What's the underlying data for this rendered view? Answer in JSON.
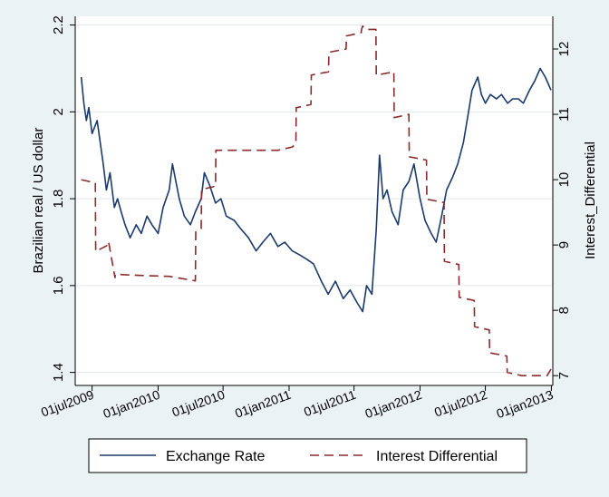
{
  "chart_data": {
    "type": "line",
    "title": "",
    "xlabel": "",
    "x_ticks": [
      "01jul2009",
      "01jan2010",
      "01jul2010",
      "01jan2011",
      "01jul2011",
      "01jan2012",
      "01jul2012",
      "01jan2013"
    ],
    "xlim": [
      "2009-05-15",
      "2013-01-05"
    ],
    "left_axis": {
      "label": "Brazilian real / US dollar",
      "ticks": [
        1.4,
        1.6,
        1.8,
        2,
        2.2
      ],
      "ylim": [
        1.37,
        2.22
      ]
    },
    "right_axis": {
      "label": "Interest_Differential",
      "ticks": [
        7,
        8,
        9,
        10,
        11,
        12
      ],
      "ylim": [
        6.85,
        12.5
      ]
    },
    "grid": "horizontal",
    "legend": {
      "position": "bottom",
      "entries": [
        "Exchange Rate",
        "Interest Differential"
      ]
    },
    "colors": {
      "exchange_rate": "#1a3a6b",
      "interest_differential": "#8b2a2a",
      "background": "#eaf2f3",
      "plot_area": "#ffffff"
    },
    "series": [
      {
        "name": "Exchange Rate",
        "axis": "left",
        "style": "solid",
        "x": [
          "2009-06-01",
          "2009-06-08",
          "2009-06-15",
          "2009-06-22",
          "2009-07-01",
          "2009-07-15",
          "2009-08-01",
          "2009-08-10",
          "2009-08-20",
          "2009-09-01",
          "2009-09-10",
          "2009-09-20",
          "2009-10-01",
          "2009-10-15",
          "2009-11-01",
          "2009-11-15",
          "2009-12-01",
          "2009-12-15",
          "2010-01-01",
          "2010-01-15",
          "2010-02-01",
          "2010-02-10",
          "2010-03-01",
          "2010-03-15",
          "2010-04-01",
          "2010-04-15",
          "2010-05-01",
          "2010-05-10",
          "2010-05-25",
          "2010-06-10",
          "2010-06-25",
          "2010-07-10",
          "2010-08-01",
          "2010-08-20",
          "2010-09-10",
          "2010-10-01",
          "2010-10-20",
          "2010-11-10",
          "2010-12-01",
          "2010-12-20",
          "2011-01-10",
          "2011-02-01",
          "2011-02-20",
          "2011-03-10",
          "2011-04-01",
          "2011-04-20",
          "2011-05-10",
          "2011-06-01",
          "2011-06-20",
          "2011-07-10",
          "2011-07-25",
          "2011-08-05",
          "2011-08-20",
          "2011-09-01",
          "2011-09-10",
          "2011-09-20",
          "2011-10-01",
          "2011-10-15",
          "2011-11-01",
          "2011-11-15",
          "2011-12-01",
          "2011-12-15",
          "2012-01-01",
          "2012-01-15",
          "2012-02-01",
          "2012-02-15",
          "2012-03-01",
          "2012-03-15",
          "2012-04-01",
          "2012-04-15",
          "2012-05-01",
          "2012-05-15",
          "2012-05-25",
          "2012-06-10",
          "2012-06-20",
          "2012-07-01",
          "2012-07-15",
          "2012-08-01",
          "2012-08-15",
          "2012-09-01",
          "2012-09-15",
          "2012-10-01",
          "2012-10-15",
          "2012-11-01",
          "2012-11-15",
          "2012-12-01",
          "2012-12-15",
          "2012-12-31"
        ],
        "values": [
          2.08,
          2.02,
          1.98,
          2.01,
          1.95,
          1.98,
          1.88,
          1.82,
          1.86,
          1.78,
          1.8,
          1.77,
          1.74,
          1.71,
          1.74,
          1.72,
          1.76,
          1.74,
          1.72,
          1.78,
          1.82,
          1.88,
          1.8,
          1.76,
          1.74,
          1.77,
          1.8,
          1.86,
          1.83,
          1.79,
          1.8,
          1.76,
          1.75,
          1.73,
          1.71,
          1.68,
          1.7,
          1.72,
          1.69,
          1.7,
          1.68,
          1.67,
          1.66,
          1.65,
          1.61,
          1.58,
          1.61,
          1.57,
          1.59,
          1.56,
          1.54,
          1.6,
          1.58,
          1.73,
          1.9,
          1.8,
          1.82,
          1.77,
          1.74,
          1.82,
          1.84,
          1.88,
          1.8,
          1.75,
          1.72,
          1.7,
          1.76,
          1.82,
          1.85,
          1.88,
          1.93,
          2.0,
          2.05,
          2.08,
          2.04,
          2.02,
          2.04,
          2.03,
          2.04,
          2.02,
          2.03,
          2.03,
          2.02,
          2.05,
          2.07,
          2.1,
          2.08,
          2.05
        ]
      },
      {
        "name": "Interest Differential",
        "axis": "right",
        "style": "dashed",
        "x": [
          "2009-06-01",
          "2009-07-10",
          "2009-07-11",
          "2009-08-15",
          "2009-08-16",
          "2009-09-03",
          "2009-09-04",
          "2009-12-01",
          "2010-02-01",
          "2010-04-15",
          "2010-04-16",
          "2010-05-01",
          "2010-05-02",
          "2010-06-10",
          "2010-06-11",
          "2010-12-01",
          "2011-01-10",
          "2011-01-20",
          "2011-01-21",
          "2011-03-03",
          "2011-03-04",
          "2011-04-21",
          "2011-04-22",
          "2011-06-09",
          "2011-06-10",
          "2011-07-21",
          "2011-07-22",
          "2011-07-25",
          "2011-08-05",
          "2011-08-31",
          "2011-09-01",
          "2011-10-20",
          "2011-10-21",
          "2011-12-01",
          "2011-12-02",
          "2012-01-19",
          "2012-01-20",
          "2012-03-08",
          "2012-03-09",
          "2012-04-18",
          "2012-04-19",
          "2012-05-31",
          "2012-06-01",
          "2012-07-12",
          "2012-07-13",
          "2012-08-30",
          "2012-08-31",
          "2012-10-11",
          "2012-10-12",
          "2012-12-20",
          "2012-12-31"
        ],
        "values": [
          10.0,
          9.95,
          8.9,
          9.0,
          9.05,
          8.5,
          8.55,
          8.53,
          8.52,
          8.45,
          9.2,
          9.25,
          9.85,
          9.9,
          10.45,
          10.45,
          10.5,
          10.55,
          11.1,
          11.15,
          11.6,
          11.65,
          11.95,
          12.0,
          12.2,
          12.25,
          12.3,
          12.35,
          12.3,
          12.3,
          11.6,
          11.65,
          10.95,
          11.0,
          10.35,
          10.3,
          9.7,
          9.65,
          8.75,
          8.7,
          8.2,
          8.15,
          7.75,
          7.7,
          7.35,
          7.3,
          7.05,
          7.0,
          7.0,
          7.0,
          7.1
        ]
      }
    ]
  }
}
